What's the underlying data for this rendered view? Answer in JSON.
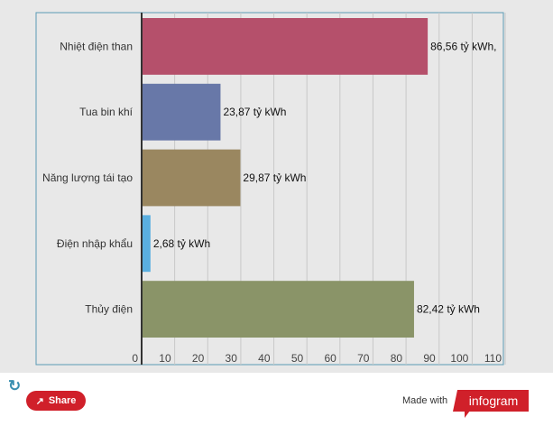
{
  "chart_data": {
    "type": "bar",
    "orientation": "horizontal",
    "categories": [
      "Nhiệt điện than",
      "Tua bin khí",
      "Năng lượng tái tạo",
      "Điện nhập khẩu",
      "Thủy điện"
    ],
    "values": [
      86.56,
      23.87,
      29.87,
      2.68,
      82.42
    ],
    "data_labels": [
      "86,56 tỷ kWh,",
      "23,87 tỷ kWh",
      "29,87 tỷ kWh",
      "2,68 tỷ kWh",
      "82,42 tỷ kWh"
    ],
    "colors": [
      "#b5506b",
      "#6878a8",
      "#9a8760",
      "#5aafe0",
      "#8a9468"
    ],
    "xlim": [
      0,
      110
    ],
    "xticks": [
      "0",
      "10",
      "20",
      "30",
      "40",
      "50",
      "60",
      "70",
      "80",
      "90",
      "100",
      "110"
    ],
    "grid": true
  },
  "footer": {
    "refresh_icon": "refresh-icon",
    "share_label": "Share",
    "made_with": "Made with",
    "brand": "infogram",
    "brand_color": "#d0202a"
  }
}
